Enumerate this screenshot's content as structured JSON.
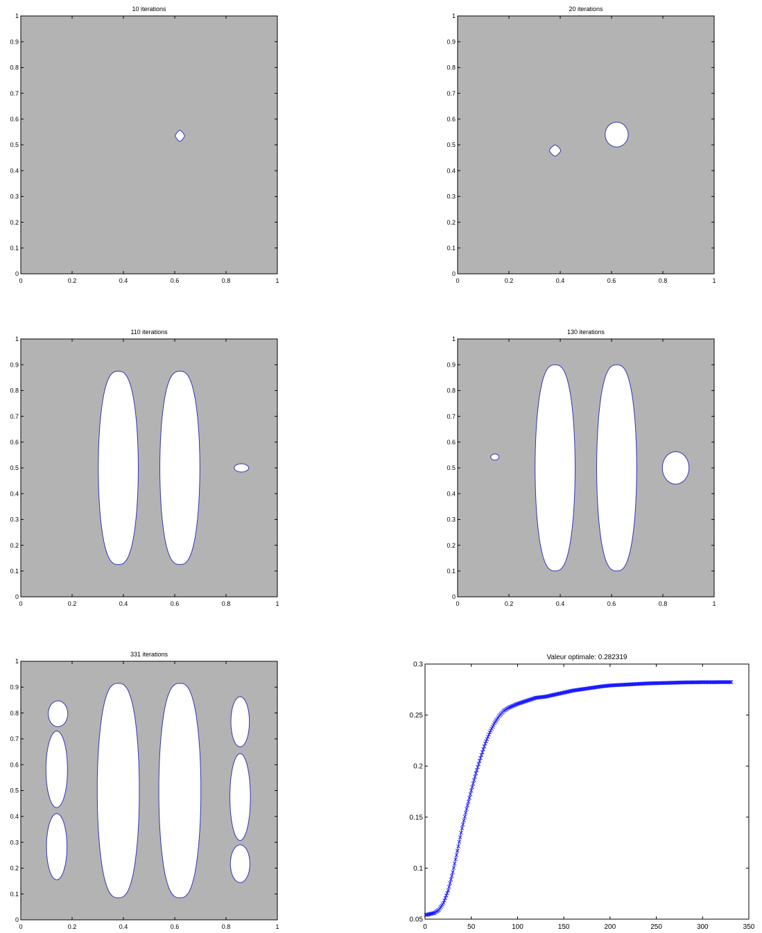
{
  "figure": {
    "colors": {
      "domain": "#b3b3b3",
      "hole_fill": "#ffffff",
      "hole_edge": "#3333bb",
      "curve": "#1a1aff",
      "axis": "#000000"
    }
  },
  "chart_data": [
    {
      "type": "contour",
      "title": "10 iterations",
      "xlim": [
        0,
        1
      ],
      "ylim": [
        0,
        1
      ],
      "xticks": [
        "0",
        "0.2",
        "0.4",
        "0.6",
        "0.8",
        "1"
      ],
      "yticks": [
        "0",
        "0.1",
        "0.2",
        "0.3",
        "0.4",
        "0.5",
        "0.6",
        "0.7",
        "0.8",
        "0.9",
        "1"
      ],
      "holes": [
        {
          "cx": 0.62,
          "cy": 0.535,
          "rx": 0.018,
          "ry": 0.022,
          "shape": "diamond"
        }
      ]
    },
    {
      "type": "contour",
      "title": "20 iterations",
      "xlim": [
        0,
        1
      ],
      "ylim": [
        0,
        1
      ],
      "xticks": [
        "0",
        "0.2",
        "0.4",
        "0.6",
        "0.8",
        "1"
      ],
      "yticks": [
        "0",
        "0.1",
        "0.2",
        "0.3",
        "0.4",
        "0.5",
        "0.6",
        "0.7",
        "0.8",
        "0.9",
        "1"
      ],
      "holes": [
        {
          "cx": 0.38,
          "cy": 0.478,
          "rx": 0.022,
          "ry": 0.022,
          "shape": "diamond"
        },
        {
          "cx": 0.62,
          "cy": 0.54,
          "rx": 0.045,
          "ry": 0.048,
          "shape": "blob"
        }
      ]
    },
    {
      "type": "contour",
      "title": "110 iterations",
      "xlim": [
        0,
        1
      ],
      "ylim": [
        0,
        1
      ],
      "xticks": [
        "0",
        "0.2",
        "0.4",
        "0.6",
        "0.8",
        "1"
      ],
      "yticks": [
        "0",
        "0.1",
        "0.2",
        "0.3",
        "0.4",
        "0.5",
        "0.6",
        "0.7",
        "0.8",
        "0.9",
        "1"
      ],
      "holes": [
        {
          "cx": 0.38,
          "cy": 0.5,
          "rx": 0.078,
          "ry": 0.375,
          "shape": "lens"
        },
        {
          "cx": 0.62,
          "cy": 0.5,
          "rx": 0.078,
          "ry": 0.375,
          "shape": "lens"
        },
        {
          "cx": 0.86,
          "cy": 0.5,
          "rx": 0.028,
          "ry": 0.016,
          "shape": "blob"
        }
      ]
    },
    {
      "type": "contour",
      "title": "130 iterations",
      "xlim": [
        0,
        1
      ],
      "ylim": [
        0,
        1
      ],
      "xticks": [
        "0",
        "0.2",
        "0.4",
        "0.6",
        "0.8",
        "1"
      ],
      "yticks": [
        "0",
        "0.1",
        "0.2",
        "0.3",
        "0.4",
        "0.5",
        "0.6",
        "0.7",
        "0.8",
        "0.9",
        "1"
      ],
      "holes": [
        {
          "cx": 0.38,
          "cy": 0.5,
          "rx": 0.078,
          "ry": 0.4,
          "shape": "lens"
        },
        {
          "cx": 0.62,
          "cy": 0.5,
          "rx": 0.078,
          "ry": 0.4,
          "shape": "lens"
        },
        {
          "cx": 0.145,
          "cy": 0.542,
          "rx": 0.016,
          "ry": 0.012,
          "shape": "blob"
        },
        {
          "cx": 0.85,
          "cy": 0.5,
          "rx": 0.052,
          "ry": 0.063,
          "shape": "blob"
        }
      ]
    },
    {
      "type": "contour",
      "title": "331 iterations",
      "xlim": [
        0,
        1
      ],
      "ylim": [
        0,
        1
      ],
      "xticks": [
        "0",
        "0.2",
        "0.4",
        "0.6",
        "0.8",
        "1"
      ],
      "yticks": [
        "0",
        "0.1",
        "0.2",
        "0.3",
        "0.4",
        "0.5",
        "0.6",
        "0.7",
        "0.8",
        "0.9",
        "1"
      ],
      "holes": [
        {
          "cx": 0.38,
          "cy": 0.5,
          "rx": 0.082,
          "ry": 0.415,
          "shape": "lens"
        },
        {
          "cx": 0.62,
          "cy": 0.5,
          "rx": 0.082,
          "ry": 0.415,
          "shape": "lens"
        },
        {
          "cx": 0.145,
          "cy": 0.797,
          "rx": 0.038,
          "ry": 0.05,
          "shape": "blob"
        },
        {
          "cx": 0.14,
          "cy": 0.582,
          "rx": 0.042,
          "ry": 0.148,
          "shape": "blob"
        },
        {
          "cx": 0.14,
          "cy": 0.283,
          "rx": 0.04,
          "ry": 0.128,
          "shape": "blob"
        },
        {
          "cx": 0.855,
          "cy": 0.766,
          "rx": 0.036,
          "ry": 0.097,
          "shape": "blob"
        },
        {
          "cx": 0.855,
          "cy": 0.475,
          "rx": 0.04,
          "ry": 0.168,
          "shape": "blob"
        },
        {
          "cx": 0.855,
          "cy": 0.217,
          "rx": 0.038,
          "ry": 0.073,
          "shape": "blob"
        }
      ]
    },
    {
      "type": "line",
      "title": "Valeur optimale:  0.282319",
      "xlim": [
        0,
        350
      ],
      "ylim": [
        0.05,
        0.3
      ],
      "xticks": [
        "0",
        "50",
        "100",
        "150",
        "200",
        "250",
        "300",
        "350"
      ],
      "yticks": [
        "0.05",
        "0.1",
        "0.15",
        "0.2",
        "0.25",
        "0.3"
      ],
      "marker": "x",
      "series": [
        {
          "x": [
            1,
            5,
            10,
            15,
            20,
            25,
            30,
            35,
            40,
            45,
            50,
            55,
            60,
            65,
            70,
            75,
            80,
            85,
            90,
            95,
            100,
            110,
            120,
            130,
            140,
            150,
            160,
            175,
            190,
            200,
            220,
            240,
            260,
            280,
            300,
            331
          ],
          "y": [
            0.054,
            0.055,
            0.056,
            0.059,
            0.066,
            0.078,
            0.096,
            0.117,
            0.139,
            0.158,
            0.176,
            0.193,
            0.208,
            0.222,
            0.233,
            0.242,
            0.249,
            0.254,
            0.257,
            0.259,
            0.261,
            0.264,
            0.267,
            0.268,
            0.27,
            0.272,
            0.274,
            0.276,
            0.278,
            0.279,
            0.28,
            0.281,
            0.2815,
            0.282,
            0.2822,
            0.2823
          ]
        }
      ]
    }
  ]
}
